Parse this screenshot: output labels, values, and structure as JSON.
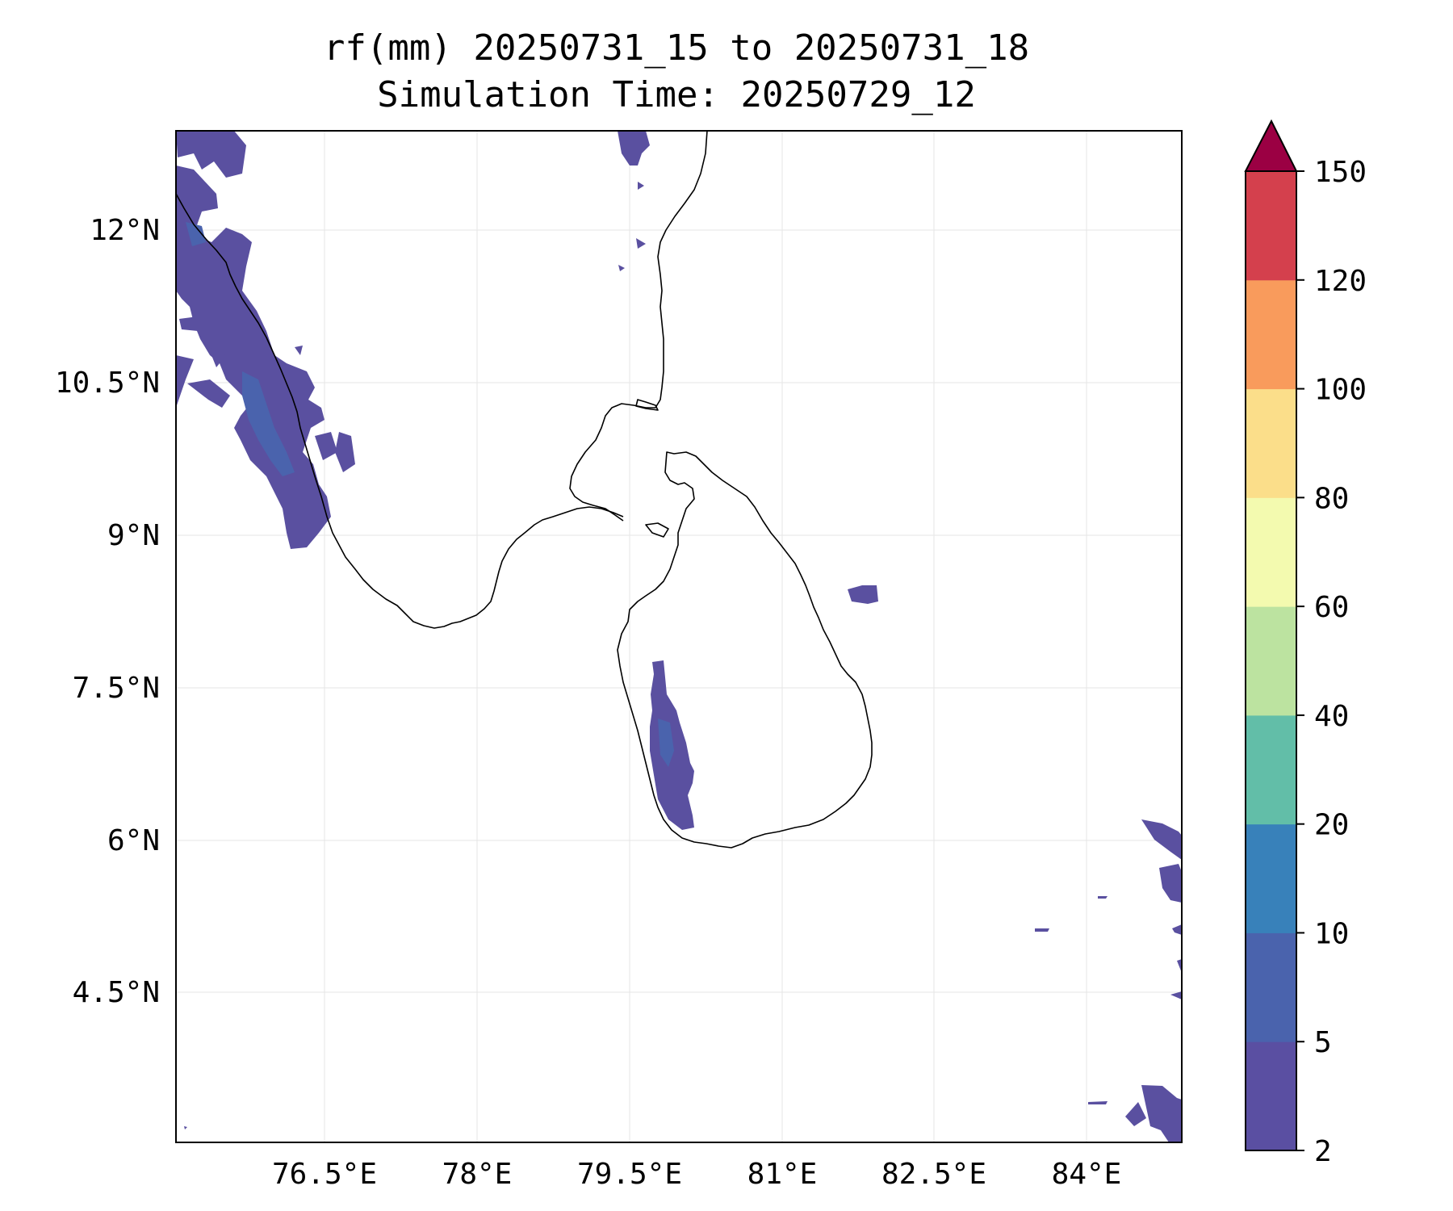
{
  "title": {
    "line1": "rf(mm) 20250731_15 to 20250731_18",
    "line2": "Simulation Time: 20250729_12"
  },
  "axes": {
    "lon_ticks": [
      "76.5°E",
      "78°E",
      "79.5°E",
      "81°E",
      "82.5°E",
      "84°E"
    ],
    "lat_ticks": [
      "12°N",
      "10.5°N",
      "9°N",
      "7.5°N",
      "6°N",
      "4.5°N"
    ]
  },
  "colorbar": {
    "ticks": [
      "2",
      "5",
      "10",
      "20",
      "40",
      "60",
      "80",
      "100",
      "120",
      "150"
    ],
    "colors": [
      "#5a4fa2",
      "#4a63ad",
      "#3881ba",
      "#62bea8",
      "#bce3a0",
      "#f3faaf",
      "#fbde8a",
      "#f99b5c",
      "#d4404d",
      "#9b0043"
    ],
    "extend": "max"
  },
  "map_layers": {
    "coastline_color": "#000000",
    "rain_color_2_5": "#5a4fa2",
    "rain_color_5_10": "#4a63ad"
  }
}
